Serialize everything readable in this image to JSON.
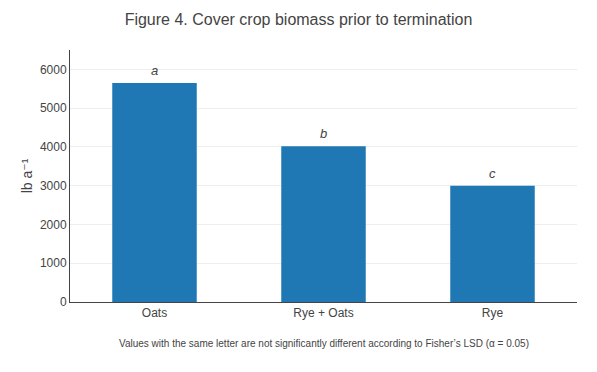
{
  "chart_data": {
    "type": "bar",
    "title": "Figure 4. Cover crop biomass prior to termination",
    "categories": [
      "Oats",
      "Rye + Oats",
      "Rye"
    ],
    "values": [
      5650,
      4020,
      3000
    ],
    "annotations": [
      "a",
      "b",
      "c"
    ],
    "ylabel": "lb a⁻¹",
    "ylim": [
      0,
      6500
    ],
    "yticks": [
      0,
      1000,
      2000,
      3000,
      4000,
      5000,
      6000
    ],
    "grid": true,
    "footnote": "Values with the same letter are not significantly different according to Fisher’s LSD (α = 0.05)"
  }
}
